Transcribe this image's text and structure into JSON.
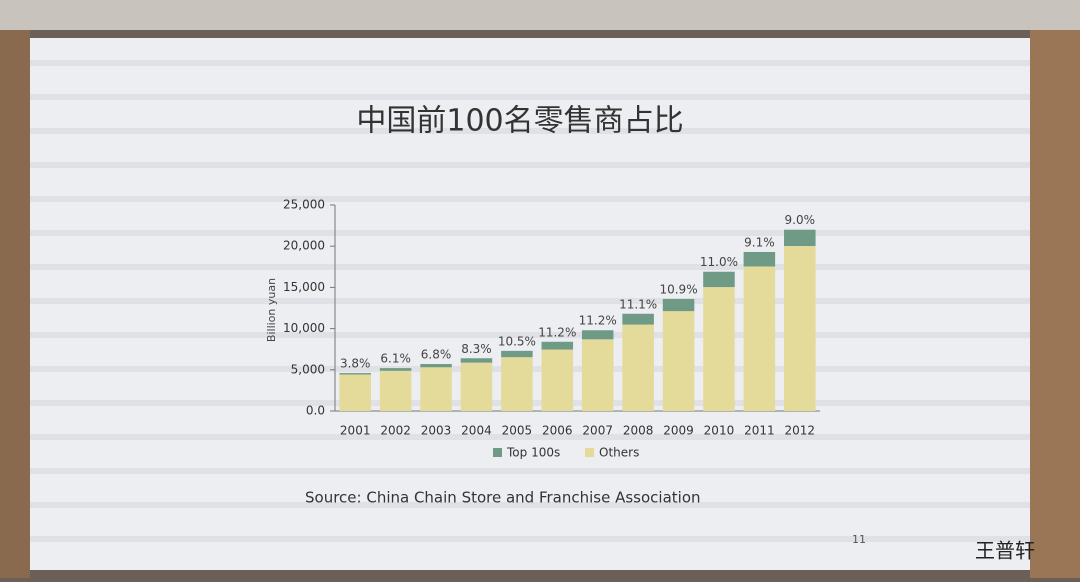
{
  "chart_data": {
    "type": "stacked_bar",
    "title": "中国前100名零售商占比",
    "y_label": "Billion yuan",
    "categories": [
      "2001",
      "2002",
      "2003",
      "2004",
      "2005",
      "2006",
      "2007",
      "2008",
      "2009",
      "2010",
      "2011",
      "2012"
    ],
    "series": [
      {
        "name": "Top 100s",
        "color": "#6f9a86",
        "values": [
          170,
          320,
          390,
          530,
          770,
          940,
          1100,
          1310,
          1480,
          1860,
          1760,
          1980
        ]
      },
      {
        "name": "Others",
        "color": "#e4da9a",
        "values": [
          4430,
          4880,
          5310,
          5870,
          6530,
          7460,
          8700,
          10490,
          12120,
          15040,
          17540,
          20020
        ]
      }
    ],
    "top_share": {
      "values": [
        3.8,
        6.1,
        6.8,
        8.3,
        10.5,
        11.2,
        11.2,
        11.1,
        10.9,
        11.0,
        9.1,
        9.0
      ],
      "value_labels": [
        "3.8%",
        "6.1%",
        "6.8%",
        "8.3%",
        "10.5%",
        "11.2%",
        "11.2%",
        "11.1%",
        "10.9%",
        "11.0%",
        "9.1%",
        "9.0%"
      ]
    },
    "ylim": [
      0,
      25000
    ],
    "yticks": [
      {
        "value": 0,
        "label": "0.0"
      },
      {
        "value": 5000,
        "label": "5,000"
      },
      {
        "value": 10000,
        "label": "10,000"
      },
      {
        "value": 15000,
        "label": "15,000"
      },
      {
        "value": 20000,
        "label": "20,000"
      },
      {
        "value": 25000,
        "label": "25,000"
      }
    ],
    "source": "Source: China Chain Store and Franchise Association",
    "page_number": "11",
    "watermark": "王普轩"
  }
}
